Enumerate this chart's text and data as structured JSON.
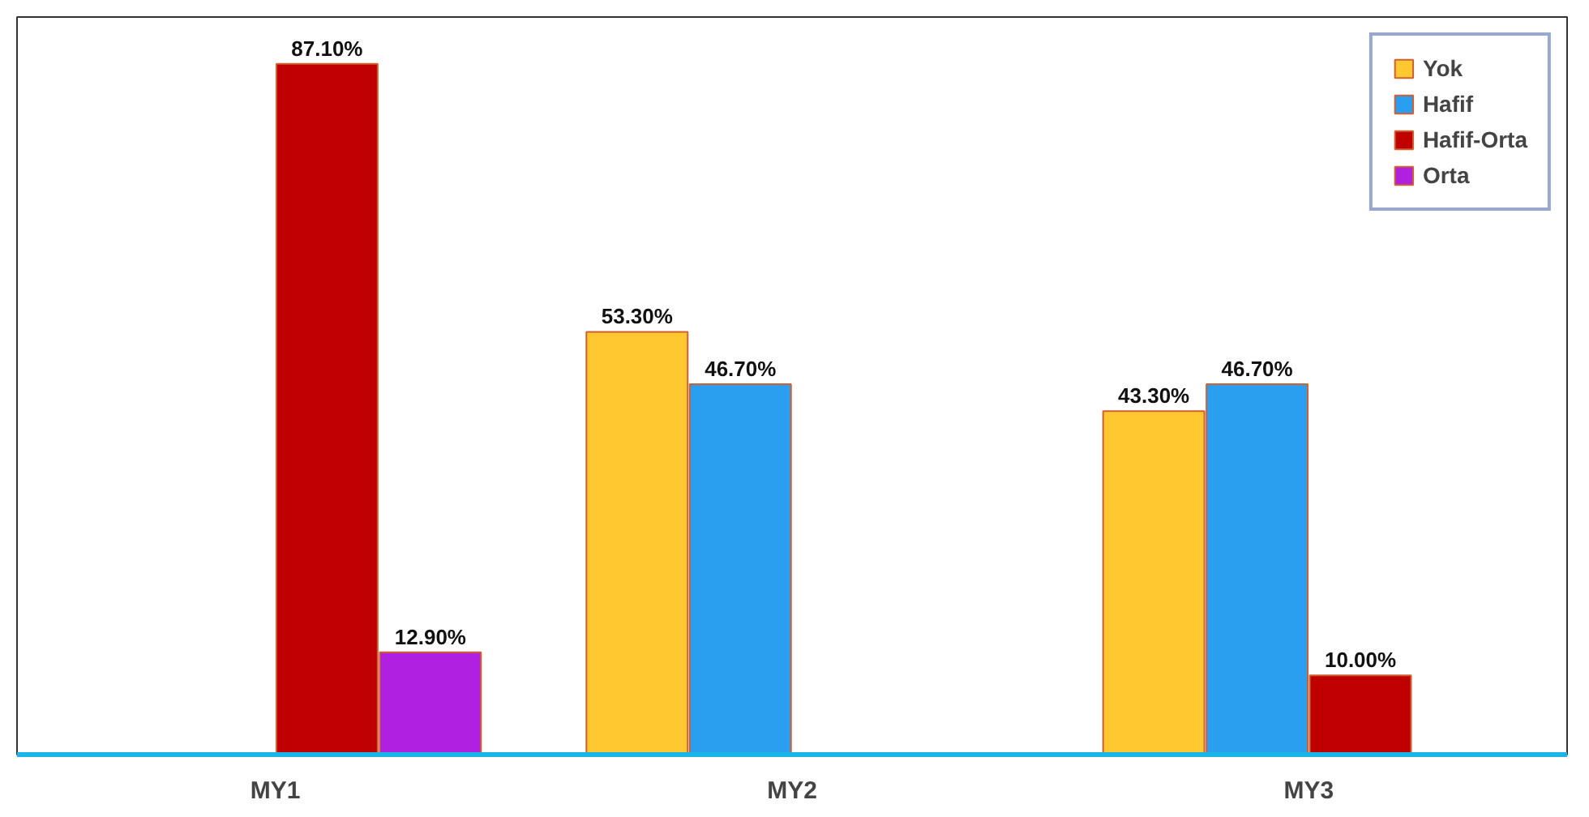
{
  "chart_data": {
    "type": "bar",
    "categories": [
      "MY1",
      "MY2",
      "MY3"
    ],
    "ylim": [
      0,
      93
    ],
    "legend": "top right",
    "grid": false,
    "series": [
      {
        "name": "Yok",
        "color": "#ffc830",
        "values": [
          null,
          53.3,
          43.3
        ],
        "value_labels": [
          null,
          "53.30%",
          "43.30%"
        ]
      },
      {
        "name": "Hafif",
        "color": "#2a9ff0",
        "values": [
          null,
          46.7,
          46.7
        ],
        "value_labels": [
          null,
          "46.70%",
          "46.70%"
        ]
      },
      {
        "name": "Hafif-Orta",
        "color": "#c00000",
        "values": [
          87.1,
          null,
          10.0
        ],
        "value_labels": [
          "87.10%",
          null,
          "10.00%"
        ]
      },
      {
        "name": "Orta",
        "color": "#b020e0",
        "values": [
          12.9,
          null,
          null
        ],
        "value_labels": [
          "12.90%",
          null,
          null
        ]
      }
    ]
  }
}
